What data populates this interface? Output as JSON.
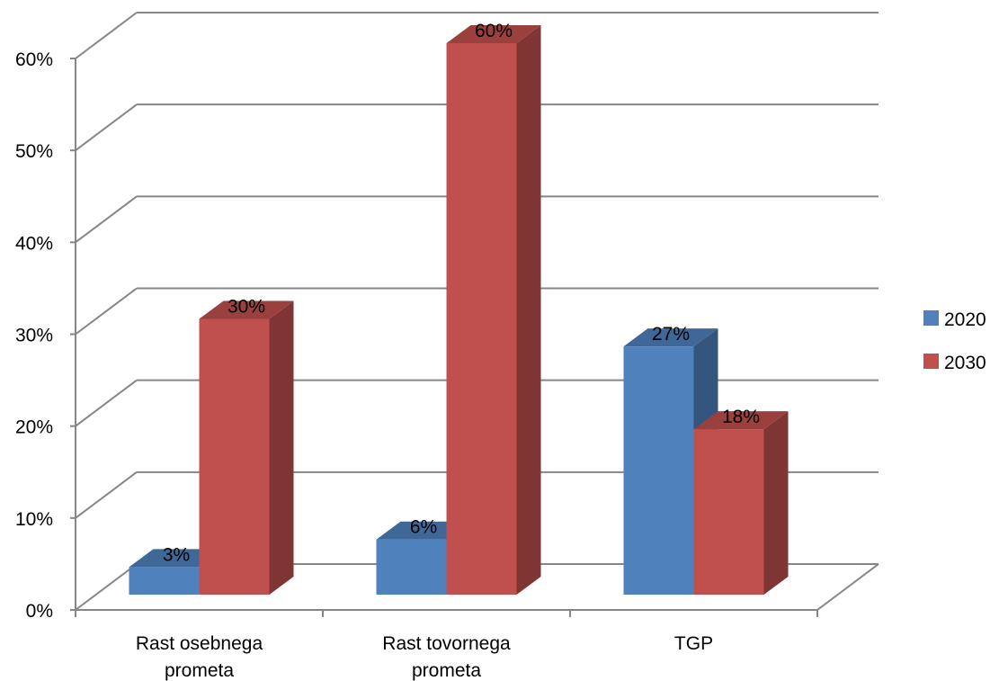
{
  "chart_data": {
    "type": "bar",
    "style": "3d-clustered-column",
    "categories": [
      "Rast osebnega prometa",
      "Rast tovornega prometa",
      "TGP"
    ],
    "category_lines": [
      [
        "Rast osebnega",
        "prometa"
      ],
      [
        "Rast tovornega",
        "prometa"
      ],
      [
        "TGP"
      ]
    ],
    "series": [
      {
        "name": "2020",
        "color": "#4F81BD",
        "values": [
          3,
          6,
          27
        ],
        "labels": [
          "3%",
          "6%",
          "27%"
        ]
      },
      {
        "name": "2030",
        "color": "#C0504D",
        "values": [
          30,
          60,
          18
        ],
        "labels": [
          "30%",
          "60%",
          "18%"
        ]
      }
    ],
    "y_ticks": [
      0,
      10,
      20,
      30,
      40,
      50,
      60
    ],
    "y_tick_labels": [
      "0%",
      "10%",
      "20%",
      "30%",
      "40%",
      "50%",
      "60%"
    ],
    "ylim": [
      0,
      60
    ],
    "grid": true,
    "legend_position": "right",
    "title": "",
    "xlabel": "",
    "ylabel": ""
  }
}
